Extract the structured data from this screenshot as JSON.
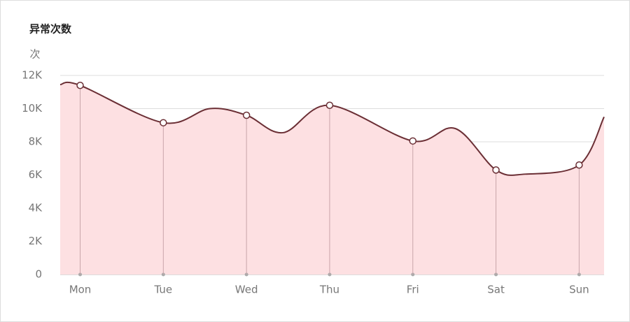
{
  "chart_data": {
    "type": "area",
    "title": "异常次数",
    "y_unit": "次",
    "x": [
      -0.24,
      0,
      1,
      1.56,
      2,
      2.44,
      3,
      4,
      4.51,
      5,
      5.35,
      6,
      6.3
    ],
    "series": [
      {
        "name": "异常次数",
        "color": "#6b2f35",
        "fill": "#fde0e2",
        "values": [
          11450,
          11400,
          9150,
          10000,
          9600,
          8550,
          10200,
          8050,
          8800,
          6300,
          6050,
          6600,
          9500
        ]
      }
    ],
    "xlim": [
      -0.24,
      6.3
    ],
    "xticks": [
      {
        "value": 0,
        "label": "Mon"
      },
      {
        "value": 1,
        "label": "Tue"
      },
      {
        "value": 2,
        "label": "Wed"
      },
      {
        "value": 3,
        "label": "Thu"
      },
      {
        "value": 4,
        "label": "Fri"
      },
      {
        "value": 5,
        "label": "Sat"
      },
      {
        "value": 6,
        "label": "Sun"
      }
    ],
    "ylim": [
      0,
      12000
    ],
    "yticks": [
      0,
      {
        "value": 2000,
        "label": "2K"
      },
      {
        "value": 4000,
        "label": "4K"
      },
      {
        "value": 6000,
        "label": "6K"
      },
      {
        "value": 8000,
        "label": "8K"
      },
      {
        "value": 10000,
        "label": "10K"
      },
      {
        "value": 12000,
        "label": "12K"
      }
    ],
    "grid": true
  }
}
